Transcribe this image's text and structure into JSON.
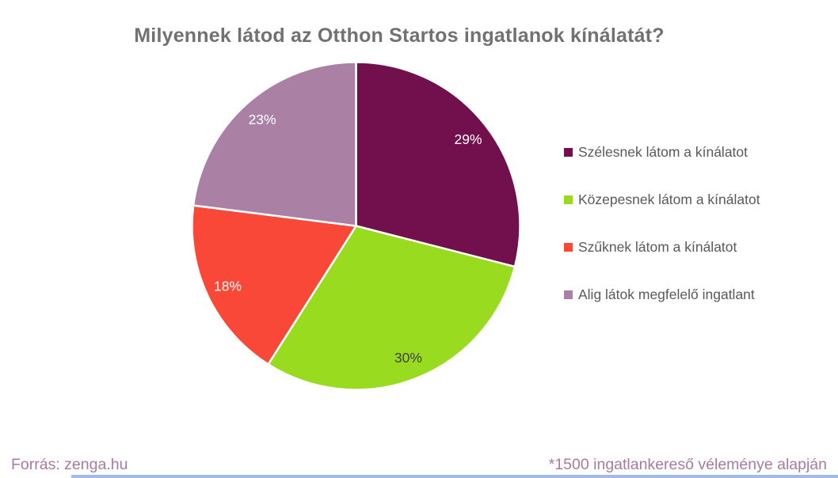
{
  "title": "Milyennek látod az Otthon Startos ingatlanok kínálatát?",
  "chart_data": {
    "type": "pie",
    "title": "Milyennek látod az Otthon Startos ingatlanok kínálatát?",
    "start_angle_deg": 0,
    "direction": "clockwise",
    "legend_position": "right",
    "slices": [
      {
        "label": "Szélesnek látom a kínálatot",
        "value": 29,
        "display": "29%",
        "color": "#72104E",
        "label_color": "#FFFFFF"
      },
      {
        "label": "Közepesnek látom a kínálatot",
        "value": 30,
        "display": "30%",
        "color": "#99DB1F",
        "label_color": "#404040"
      },
      {
        "label": "Szűknek látom a kínálatot",
        "value": 18,
        "display": "18%",
        "color": "#FA4838",
        "label_color": "#FFFFFF"
      },
      {
        "label": "Alig látok megfelelő ingatlant",
        "value": 23,
        "display": "23%",
        "color": "#AB80A5",
        "label_color": "#FFFFFF"
      }
    ]
  },
  "footer": {
    "source": "Forrás: zenga.hu",
    "note": "*1500 ingatlankereső véleménye alapján"
  },
  "colors": {
    "title_text": "#717171",
    "legend_text": "#595959",
    "footer_text": "#A77BA1",
    "background": "#FFFFFF",
    "slice_border": "#FFFFFF",
    "bottom_bar": "#9FBAEB"
  }
}
